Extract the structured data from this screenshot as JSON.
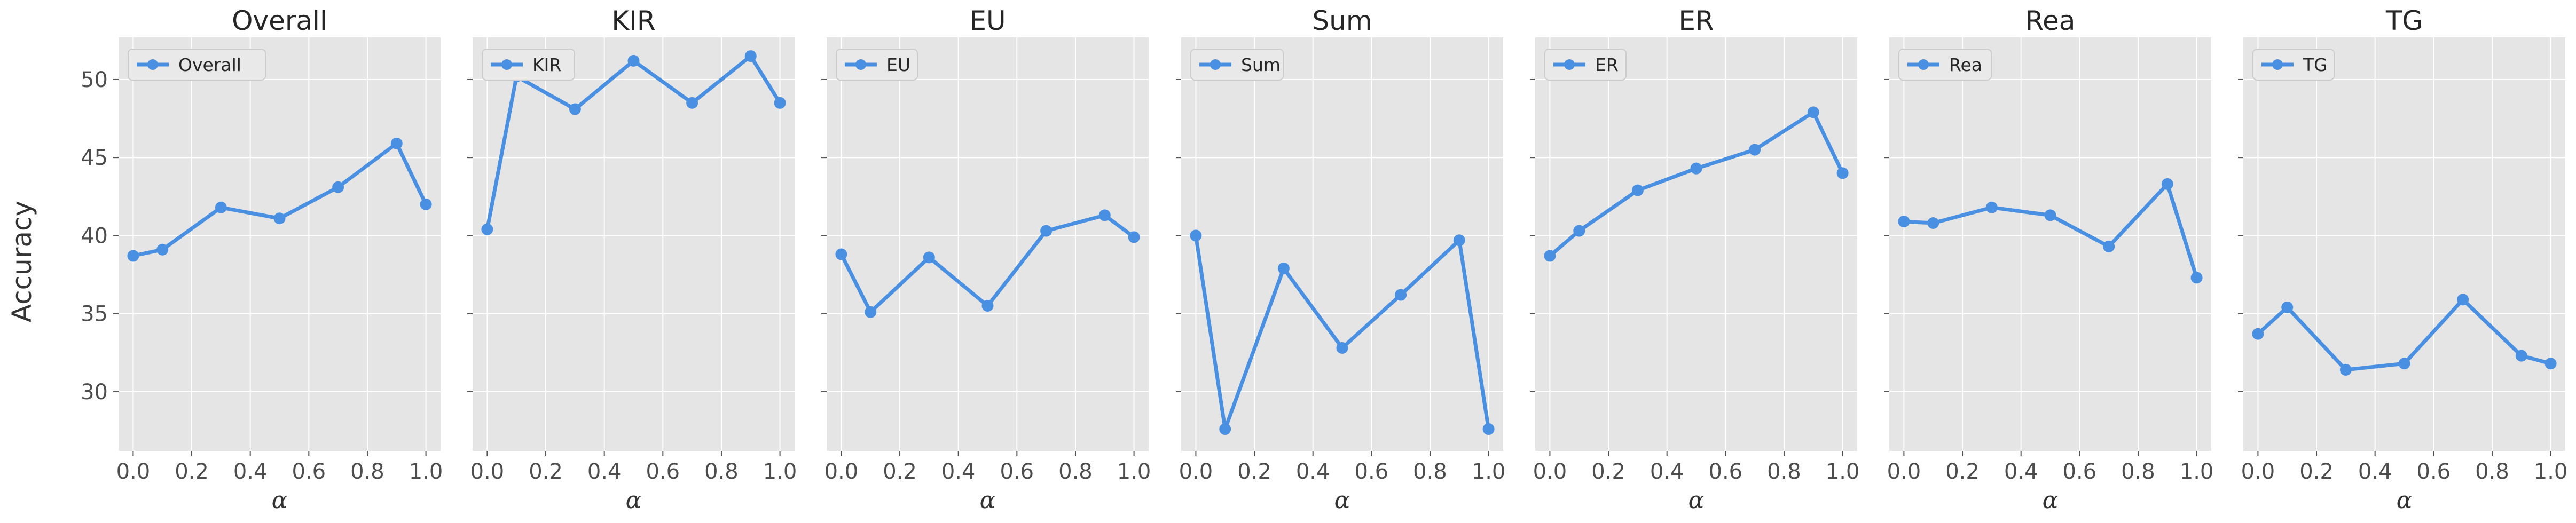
{
  "figure": {
    "ylabel": "Accuracy"
  },
  "chart_data": [
    {
      "type": "line",
      "title": "Overall",
      "xlabel": "α",
      "ylabel": "Accuracy",
      "x": [
        0.0,
        0.1,
        0.3,
        0.5,
        0.7,
        0.9,
        1.0
      ],
      "series": [
        {
          "name": "Overall",
          "values": [
            38.7,
            39.1,
            41.8,
            41.1,
            43.1,
            45.9,
            42.0
          ]
        }
      ],
      "xticks": [
        "0.0",
        "0.2",
        "0.4",
        "0.6",
        "0.8",
        "1.0"
      ],
      "yticks": [
        "30",
        "35",
        "40",
        "45",
        "50"
      ],
      "xlim": [
        -0.05,
        1.05
      ],
      "ylim": [
        26.2,
        52.7
      ],
      "grid": true,
      "legend": "upper-left",
      "color": "#4a90e2"
    },
    {
      "type": "line",
      "title": "KIR",
      "xlabel": "α",
      "x": [
        0.0,
        0.1,
        0.3,
        0.5,
        0.7,
        0.9,
        1.0
      ],
      "series": [
        {
          "name": "KIR",
          "values": [
            40.4,
            50.2,
            48.1,
            51.2,
            48.5,
            51.5,
            48.5
          ]
        }
      ],
      "xticks": [
        "0.0",
        "0.2",
        "0.4",
        "0.6",
        "0.8",
        "1.0"
      ],
      "xlim": [
        -0.05,
        1.05
      ],
      "ylim": [
        26.2,
        52.7
      ],
      "grid": true,
      "legend": "upper-left",
      "color": "#4a90e2"
    },
    {
      "type": "line",
      "title": "EU",
      "xlabel": "α",
      "x": [
        0.0,
        0.1,
        0.3,
        0.5,
        0.7,
        0.9,
        1.0
      ],
      "series": [
        {
          "name": "EU",
          "values": [
            38.8,
            35.1,
            38.6,
            35.5,
            40.3,
            41.3,
            39.9
          ]
        }
      ],
      "xticks": [
        "0.0",
        "0.2",
        "0.4",
        "0.6",
        "0.8",
        "1.0"
      ],
      "xlim": [
        -0.05,
        1.05
      ],
      "ylim": [
        26.2,
        52.7
      ],
      "grid": true,
      "legend": "upper-left",
      "color": "#4a90e2"
    },
    {
      "type": "line",
      "title": "Sum",
      "xlabel": "α",
      "x": [
        0.0,
        0.1,
        0.3,
        0.5,
        0.7,
        0.9,
        1.0
      ],
      "series": [
        {
          "name": "Sum",
          "values": [
            40.0,
            27.6,
            37.9,
            32.8,
            36.2,
            39.7,
            27.6
          ]
        }
      ],
      "xticks": [
        "0.0",
        "0.2",
        "0.4",
        "0.6",
        "0.8",
        "1.0"
      ],
      "xlim": [
        -0.05,
        1.05
      ],
      "ylim": [
        26.2,
        52.7
      ],
      "grid": true,
      "legend": "upper-left",
      "color": "#4a90e2"
    },
    {
      "type": "line",
      "title": "ER",
      "xlabel": "α",
      "x": [
        0.0,
        0.1,
        0.3,
        0.5,
        0.7,
        0.9,
        1.0
      ],
      "series": [
        {
          "name": "ER",
          "values": [
            38.7,
            40.3,
            42.9,
            44.3,
            45.5,
            47.9,
            44.0
          ]
        }
      ],
      "xticks": [
        "0.0",
        "0.2",
        "0.4",
        "0.6",
        "0.8",
        "1.0"
      ],
      "xlim": [
        -0.05,
        1.05
      ],
      "ylim": [
        26.2,
        52.7
      ],
      "grid": true,
      "legend": "upper-left",
      "color": "#4a90e2"
    },
    {
      "type": "line",
      "title": "Rea",
      "xlabel": "α",
      "x": [
        0.0,
        0.1,
        0.3,
        0.5,
        0.7,
        0.9,
        1.0
      ],
      "series": [
        {
          "name": "Rea",
          "values": [
            40.9,
            40.8,
            41.8,
            41.3,
            39.3,
            43.3,
            37.3
          ]
        }
      ],
      "xticks": [
        "0.0",
        "0.2",
        "0.4",
        "0.6",
        "0.8",
        "1.0"
      ],
      "xlim": [
        -0.05,
        1.05
      ],
      "ylim": [
        26.2,
        52.7
      ],
      "grid": true,
      "legend": "upper-left",
      "color": "#4a90e2"
    },
    {
      "type": "line",
      "title": "TG",
      "xlabel": "α",
      "x": [
        0.0,
        0.1,
        0.3,
        0.5,
        0.7,
        0.9,
        1.0
      ],
      "series": [
        {
          "name": "TG",
          "values": [
            33.7,
            35.4,
            31.4,
            31.8,
            35.9,
            32.3,
            31.8
          ]
        }
      ],
      "xticks": [
        "0.0",
        "0.2",
        "0.4",
        "0.6",
        "0.8",
        "1.0"
      ],
      "xlim": [
        -0.05,
        1.05
      ],
      "ylim": [
        26.2,
        52.7
      ],
      "grid": true,
      "legend": "upper-left",
      "color": "#4a90e2"
    }
  ]
}
